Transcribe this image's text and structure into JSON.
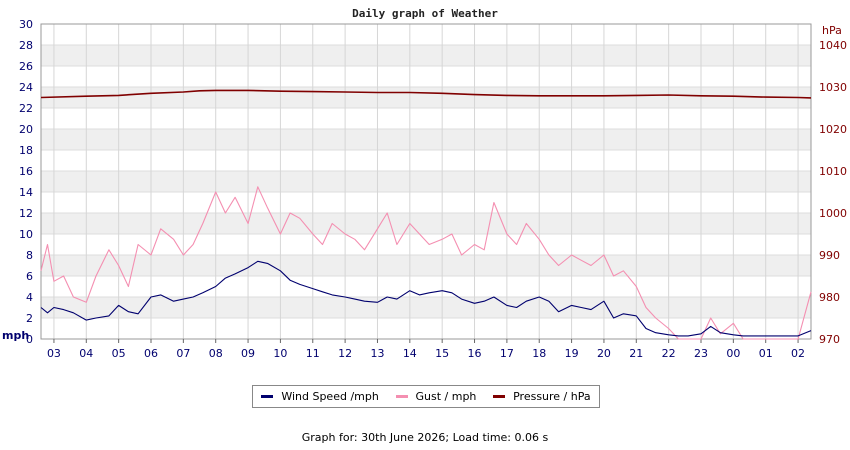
{
  "chart_data": {
    "type": "line",
    "title": "Daily graph of Weather",
    "left_axis": {
      "label": "mph",
      "min": 0,
      "max": 30,
      "ticks": [
        0,
        2,
        4,
        6,
        8,
        10,
        12,
        14,
        16,
        18,
        20,
        22,
        24,
        26,
        28,
        30
      ],
      "color": "#00006e"
    },
    "right_axis": {
      "label": "hPa",
      "min": 970,
      "max": 1045,
      "ticks": [
        970,
        980,
        990,
        1000,
        1010,
        1020,
        1030,
        1040
      ],
      "color": "#800000"
    },
    "x_ticks": [
      "03",
      "04",
      "05",
      "06",
      "07",
      "08",
      "09",
      "10",
      "11",
      "12",
      "13",
      "14",
      "15",
      "16",
      "17",
      "18",
      "19",
      "20",
      "21",
      "22",
      "23",
      "00",
      "01",
      "02"
    ],
    "x_range_hours": [
      2.6,
      26.4
    ],
    "grid": true,
    "series": [
      {
        "name": "Wind Speed /mph",
        "color": "#00006e",
        "axis": "left",
        "x": [
          2.6,
          2.8,
          3.0,
          3.3,
          3.6,
          4.0,
          4.3,
          4.7,
          5.0,
          5.3,
          5.6,
          6.0,
          6.3,
          6.7,
          7.0,
          7.3,
          7.6,
          8.0,
          8.3,
          8.6,
          9.0,
          9.3,
          9.6,
          10.0,
          10.3,
          10.6,
          11.0,
          11.3,
          11.6,
          12.0,
          12.3,
          12.6,
          13.0,
          13.3,
          13.6,
          14.0,
          14.3,
          14.6,
          15.0,
          15.3,
          15.6,
          16.0,
          16.3,
          16.6,
          17.0,
          17.3,
          17.6,
          18.0,
          18.3,
          18.6,
          19.0,
          19.3,
          19.6,
          20.0,
          20.3,
          20.6,
          21.0,
          21.3,
          21.6,
          22.0,
          22.3,
          22.6,
          23.0,
          23.3,
          23.6,
          24.0,
          24.3,
          24.6,
          25.0,
          25.3,
          25.6,
          26.0,
          26.4
        ],
        "y": [
          3.0,
          2.5,
          3.0,
          2.8,
          2.5,
          1.8,
          2.0,
          2.2,
          3.2,
          2.6,
          2.4,
          4.0,
          4.2,
          3.6,
          3.8,
          4.0,
          4.4,
          5.0,
          5.8,
          6.2,
          6.8,
          7.4,
          7.2,
          6.5,
          5.6,
          5.2,
          4.8,
          4.5,
          4.2,
          4.0,
          3.8,
          3.6,
          3.5,
          4.0,
          3.8,
          4.6,
          4.2,
          4.4,
          4.6,
          4.4,
          3.8,
          3.4,
          3.6,
          4.0,
          3.2,
          3.0,
          3.6,
          4.0,
          3.6,
          2.6,
          3.2,
          3.0,
          2.8,
          3.6,
          2.0,
          2.4,
          2.2,
          1.0,
          0.6,
          0.4,
          0.3,
          0.3,
          0.5,
          1.2,
          0.6,
          0.4,
          0.3,
          0.3,
          0.3,
          0.3,
          0.3,
          0.3,
          0.8
        ]
      },
      {
        "name": "Gust / mph",
        "color": "#f48fb1",
        "axis": "left",
        "x": [
          2.6,
          2.8,
          3.0,
          3.3,
          3.6,
          4.0,
          4.3,
          4.7,
          5.0,
          5.3,
          5.6,
          6.0,
          6.3,
          6.7,
          7.0,
          7.3,
          7.6,
          8.0,
          8.3,
          8.6,
          9.0,
          9.3,
          9.6,
          10.0,
          10.3,
          10.6,
          11.0,
          11.3,
          11.6,
          12.0,
          12.3,
          12.6,
          13.0,
          13.3,
          13.6,
          14.0,
          14.3,
          14.6,
          15.0,
          15.3,
          15.6,
          16.0,
          16.3,
          16.6,
          17.0,
          17.3,
          17.6,
          18.0,
          18.3,
          18.6,
          19.0,
          19.3,
          19.6,
          20.0,
          20.3,
          20.6,
          21.0,
          21.3,
          21.6,
          22.0,
          22.3,
          22.6,
          23.0,
          23.3,
          23.6,
          24.0,
          24.3,
          24.6,
          25.0,
          25.3,
          25.6,
          26.0,
          26.4
        ],
        "y": [
          6.5,
          9.0,
          5.5,
          6.0,
          4.0,
          3.5,
          6.0,
          8.5,
          7.0,
          5.0,
          9.0,
          8.0,
          10.5,
          9.5,
          8.0,
          9.0,
          11.0,
          14.0,
          12.0,
          13.5,
          11.0,
          14.5,
          12.5,
          10.0,
          12.0,
          11.5,
          10.0,
          9.0,
          11.0,
          10.0,
          9.5,
          8.5,
          10.5,
          12.0,
          9.0,
          11.0,
          10.0,
          9.0,
          9.5,
          10.0,
          8.0,
          9.0,
          8.5,
          13.0,
          10.0,
          9.0,
          11.0,
          9.5,
          8.0,
          7.0,
          8.0,
          7.5,
          7.0,
          8.0,
          6.0,
          6.5,
          5.0,
          3.0,
          2.0,
          1.0,
          0.0,
          0.0,
          0.0,
          2.0,
          0.5,
          1.5,
          0.0,
          0.0,
          0.0,
          0.0,
          0.0,
          0.0,
          4.5
        ]
      },
      {
        "name": "Pressure / hPa",
        "color": "#800000",
        "axis": "right",
        "x": [
          2.6,
          4.0,
          5.0,
          6.0,
          7.0,
          7.5,
          8.0,
          9.0,
          10.0,
          11.0,
          12.0,
          13.0,
          14.0,
          15.0,
          16.0,
          17.0,
          18.0,
          19.0,
          20.0,
          21.0,
          22.0,
          23.0,
          24.0,
          25.0,
          26.0,
          26.4
        ],
        "y": [
          1027.5,
          1027.8,
          1028.0,
          1028.5,
          1028.8,
          1029.1,
          1029.2,
          1029.2,
          1029.0,
          1028.9,
          1028.8,
          1028.7,
          1028.7,
          1028.5,
          1028.2,
          1028.0,
          1027.9,
          1027.9,
          1027.9,
          1028.0,
          1028.1,
          1027.9,
          1027.8,
          1027.6,
          1027.5,
          1027.4
        ]
      }
    ]
  },
  "footer_text": "Graph for: 30th June 2026; Load time: 0.06 s"
}
